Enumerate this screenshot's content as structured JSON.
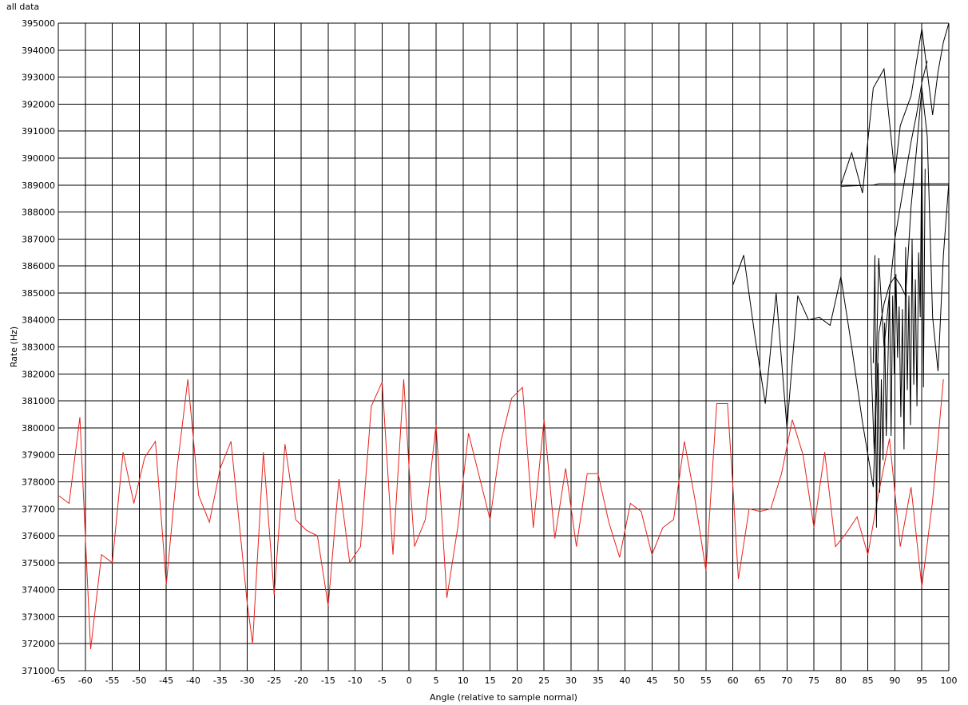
{
  "title": "all data",
  "chart_data": {
    "type": "line",
    "title": "all data",
    "xlabel": "Angle (relative to sample normal)",
    "ylabel": "Rate (Hz)",
    "xlim": [
      -65,
      100
    ],
    "ylim": [
      371000,
      395000
    ],
    "xticks": [
      -65,
      -60,
      -55,
      -50,
      -45,
      -40,
      -35,
      -30,
      -25,
      -20,
      -15,
      -10,
      -5,
      0,
      5,
      10,
      15,
      20,
      25,
      30,
      35,
      40,
      45,
      50,
      55,
      60,
      65,
      70,
      75,
      80,
      85,
      90,
      95,
      100
    ],
    "yticks": [
      371000,
      372000,
      373000,
      374000,
      375000,
      376000,
      377000,
      378000,
      379000,
      380000,
      381000,
      382000,
      383000,
      384000,
      385000,
      386000,
      387000,
      388000,
      389000,
      390000,
      391000,
      392000,
      393000,
      394000,
      395000
    ],
    "grid": true,
    "series": [
      {
        "color": "#e8221c",
        "x": [
          -65,
          -63,
          -61,
          -60,
          -59,
          -57,
          -55,
          -53,
          -51,
          -49,
          -47,
          -45,
          -43,
          -41,
          -39,
          -37,
          -35,
          -33,
          -31,
          -30,
          -29,
          -27,
          -25,
          -23,
          -21,
          -19,
          -17,
          -15,
          -13,
          -11,
          -9,
          -7,
          -5,
          -3,
          -1,
          0,
          1,
          3,
          5,
          7,
          9,
          11,
          13,
          15,
          17,
          19,
          21,
          23,
          25,
          27,
          29,
          31,
          33,
          35,
          37,
          39,
          41,
          43,
          45,
          47,
          49,
          51,
          53,
          55,
          57,
          59,
          60,
          61,
          63,
          65,
          67,
          69,
          71,
          73,
          75,
          77,
          79,
          81,
          83,
          85,
          87,
          89,
          91,
          93,
          95,
          97,
          99
        ],
        "y": [
          377500,
          377200,
          380400,
          376000,
          371800,
          375300,
          375000,
          379100,
          377200,
          378900,
          379500,
          374200,
          378500,
          381800,
          377500,
          376500,
          378500,
          379500,
          375500,
          373500,
          372000,
          379100,
          373800,
          379400,
          376600,
          376200,
          376000,
          373400,
          378100,
          375000,
          375600,
          380800,
          381700,
          375300,
          381800,
          378500,
          375600,
          376600,
          380100,
          373700,
          376300,
          379800,
          378200,
          376600,
          379500,
          381100,
          381500,
          376300,
          380300,
          375900,
          378500,
          375600,
          378300,
          378300,
          376500,
          375200,
          377200,
          376900,
          375300,
          376300,
          376600,
          379500,
          377300,
          374700,
          380900,
          380900,
          377800,
          374400,
          377000,
          376900,
          377000,
          378300,
          380300,
          379000,
          376300,
          379100,
          375600,
          376100,
          376700,
          375300,
          377600,
          379600,
          375600,
          377800,
          374100,
          377300,
          381800
        ]
      },
      {
        "color": "#000000",
        "x": [
          60,
          62,
          64,
          66,
          68,
          70,
          72,
          74,
          76,
          78,
          80,
          82,
          84,
          86,
          87,
          88,
          89,
          90,
          91,
          92,
          93,
          94,
          95,
          96,
          97,
          98,
          99,
          100
        ],
        "y": [
          385300,
          386400,
          383500,
          380900,
          385000,
          380000,
          384900,
          384000,
          384100,
          383800,
          385600,
          383000,
          380200,
          377800,
          383500,
          384600,
          385300,
          385600,
          385300,
          384900,
          388200,
          390300,
          392600,
          390800,
          384100,
          382100,
          386400,
          389100
        ]
      },
      {
        "color": "#000000",
        "x": [
          80,
          82,
          84,
          86,
          88,
          90,
          91,
          93,
          95,
          96,
          97,
          98,
          99,
          100
        ],
        "y": [
          389000,
          390200,
          388700,
          392600,
          393300,
          389400,
          391200,
          392300,
          394800,
          393200,
          391600,
          393200,
          394300,
          395000
        ]
      },
      {
        "color": "#000000",
        "x": [
          80,
          86,
          87,
          100
        ],
        "y": [
          388950,
          389000,
          389050,
          389050
        ]
      },
      {
        "color": "#000000",
        "x": [
          86,
          86.3,
          86.6,
          86.9,
          87.2,
          87.5,
          87.8,
          88.1,
          88.4,
          88.7,
          89,
          89.3,
          89.6,
          89.9,
          90.2,
          90.5,
          90.8,
          91.1,
          91.4,
          91.7,
          92,
          92.3,
          92.6,
          92.9,
          93.2,
          93.5,
          93.8,
          94.1,
          94.4,
          94.7,
          95,
          95.3,
          95.6
        ],
        "y": [
          382400,
          386400,
          376300,
          382400,
          377600,
          381800,
          378800,
          383900,
          379700,
          382200,
          385100,
          379700,
          384900,
          382000,
          385700,
          382600,
          384500,
          380400,
          384400,
          379200,
          386700,
          381400,
          384900,
          380100,
          387000,
          381600,
          385500,
          380800,
          386500,
          384100,
          391100,
          381500,
          389600
        ]
      },
      {
        "color": "#000000",
        "x": [
          85.5,
          86.2,
          87,
          88,
          89,
          90,
          91,
          92,
          93,
          94,
          95,
          96
        ],
        "y": [
          383000,
          379000,
          386300,
          383000,
          385000,
          387000,
          388200,
          389400,
          390600,
          391600,
          392800,
          393600
        ]
      }
    ]
  }
}
